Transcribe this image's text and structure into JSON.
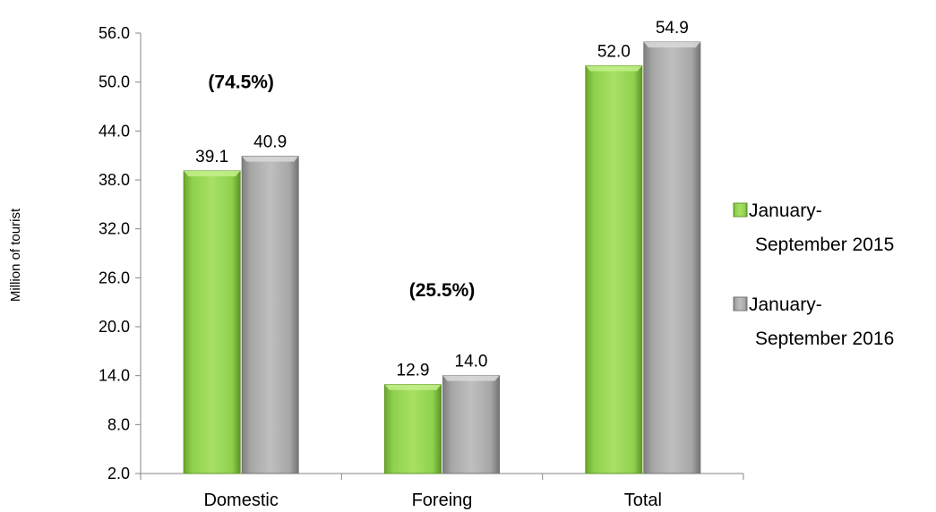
{
  "chart_data": {
    "type": "bar",
    "categories": [
      "Domestic",
      "Foreing",
      "Total"
    ],
    "series": [
      {
        "name": "January-September 2015",
        "values": [
          39.1,
          12.9,
          52.0
        ],
        "color": "#8fd14f"
      },
      {
        "name": "January-September 2016",
        "values": [
          40.9,
          14.0,
          54.9
        ],
        "color": "#a6a6a6"
      }
    ],
    "value_labels": [
      [
        "39.1",
        "12.9",
        "52.0"
      ],
      [
        "40.9",
        "14.0",
        "54.9"
      ]
    ],
    "ylabel": "Million of tourist",
    "ylim": [
      2.0,
      56.0
    ],
    "yticks": [
      "2.0",
      "8.0",
      "14.0",
      "20.0",
      "26.0",
      "32.0",
      "38.0",
      "44.0",
      "50.0",
      "56.0"
    ],
    "annotations": [
      {
        "text": "(74.5%)",
        "category": "Domestic",
        "y": 50.0
      },
      {
        "text": "(25.5%)",
        "category": "Foreing",
        "y": 24.5
      }
    ],
    "legend": {
      "position": "right",
      "entries": [
        {
          "line1": "January-",
          "line2": "September 2015"
        },
        {
          "line1": "January-",
          "line2": "September 2016"
        }
      ]
    },
    "grid": false
  }
}
